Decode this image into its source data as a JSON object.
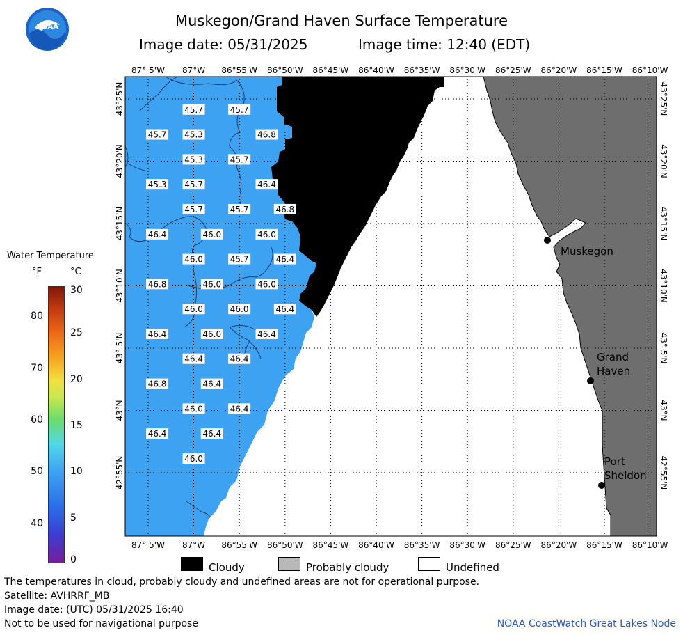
{
  "title": "Muskegon/Grand Haven Surface Temperature",
  "image_date": "Image date: 05/31/2025",
  "image_time": "Image time: 12:40 (EDT)",
  "lon_labels": [
    "87° 5'W",
    "87°W",
    "86°55'W",
    "86°50'W",
    "86°45'W",
    "86°40'W",
    "86°35'W",
    "86°30'W",
    "86°25'W",
    "86°20'W",
    "86°15'W",
    "86°10'W"
  ],
  "lat_labels": [
    "43°25'N",
    "43°20'N",
    "43°15'N",
    "43°10'N",
    "43° 5'N",
    "43°N",
    "42°55'N"
  ],
  "legend": {
    "title": "Water Temperature",
    "unit_f": "°F",
    "unit_c": "°C",
    "f_ticks": [
      "80",
      "70",
      "60",
      "50",
      "40"
    ],
    "c_ticks": [
      "30",
      "25",
      "20",
      "15",
      "10",
      "5",
      "0"
    ]
  },
  "cities": [
    {
      "name": "Muskegon"
    },
    {
      "name": "Grand\nHaven"
    },
    {
      "name": "Port\nSheldon"
    }
  ],
  "temps": [
    {
      "v": "45.7",
      "lon": -87.0,
      "lat": 43.4
    },
    {
      "v": "45.7",
      "lon": -86.9167,
      "lat": 43.4
    },
    {
      "v": "45.7",
      "lon": -87.0667,
      "lat": 43.3667
    },
    {
      "v": "45.3",
      "lon": -87.0,
      "lat": 43.3667
    },
    {
      "v": "46.8",
      "lon": -86.8667,
      "lat": 43.3667
    },
    {
      "v": "45.3",
      "lon": -87.0,
      "lat": 43.3333
    },
    {
      "v": "45.7",
      "lon": -86.9167,
      "lat": 43.3333
    },
    {
      "v": "45.3",
      "lon": -87.0667,
      "lat": 43.3
    },
    {
      "v": "45.7",
      "lon": -87.0,
      "lat": 43.3
    },
    {
      "v": "46.4",
      "lon": -86.8667,
      "lat": 43.3
    },
    {
      "v": "45.7",
      "lon": -87.0,
      "lat": 43.2667
    },
    {
      "v": "45.7",
      "lon": -86.9167,
      "lat": 43.2667
    },
    {
      "v": "46.8",
      "lon": -86.8333,
      "lat": 43.2667
    },
    {
      "v": "46.4",
      "lon": -87.0667,
      "lat": 43.2333
    },
    {
      "v": "46.0",
      "lon": -86.9667,
      "lat": 43.2333
    },
    {
      "v": "46.0",
      "lon": -86.8667,
      "lat": 43.2333
    },
    {
      "v": "46.0",
      "lon": -87.0,
      "lat": 43.2
    },
    {
      "v": "45.7",
      "lon": -86.9167,
      "lat": 43.2
    },
    {
      "v": "46.4",
      "lon": -86.8333,
      "lat": 43.2
    },
    {
      "v": "46.8",
      "lon": -87.0667,
      "lat": 43.1667
    },
    {
      "v": "46.0",
      "lon": -86.9667,
      "lat": 43.1667
    },
    {
      "v": "46.0",
      "lon": -86.8667,
      "lat": 43.1667
    },
    {
      "v": "46.0",
      "lon": -87.0,
      "lat": 43.1333
    },
    {
      "v": "46.0",
      "lon": -86.9167,
      "lat": 43.1333
    },
    {
      "v": "46.4",
      "lon": -86.8333,
      "lat": 43.1333
    },
    {
      "v": "46.4",
      "lon": -87.0667,
      "lat": 43.1
    },
    {
      "v": "46.0",
      "lon": -86.9667,
      "lat": 43.1
    },
    {
      "v": "46.4",
      "lon": -86.8667,
      "lat": 43.1
    },
    {
      "v": "46.4",
      "lon": -87.0,
      "lat": 43.0667
    },
    {
      "v": "46.4",
      "lon": -86.9167,
      "lat": 43.0667
    },
    {
      "v": "46.8",
      "lon": -87.0667,
      "lat": 43.0333
    },
    {
      "v": "46.4",
      "lon": -86.9667,
      "lat": 43.0333
    },
    {
      "v": "46.0",
      "lon": -87.0,
      "lat": 43.0
    },
    {
      "v": "46.4",
      "lon": -86.9167,
      "lat": 43.0
    },
    {
      "v": "46.4",
      "lon": -87.0667,
      "lat": 42.9667
    },
    {
      "v": "46.4",
      "lon": -86.9667,
      "lat": 42.9667
    },
    {
      "v": "46.0",
      "lon": -87.0,
      "lat": 42.9333
    }
  ],
  "key": {
    "cloudy": "Cloudy",
    "probably_cloudy": "Probably cloudy",
    "undefined": "Undefined"
  },
  "footer": {
    "line1": "The temperatures in cloud, probably cloudy and undefined areas are not for operational purpose.",
    "line2": "Satellite: AVHRRF_MB",
    "line3": "Image date: (UTC) 05/31/2025  16:40",
    "line4": "Not to be used for navigational purpose"
  },
  "credit": "NOAA CoastWatch Great Lakes Node",
  "logo_text": "NOAA",
  "colors": {
    "water": "#3ea2f2",
    "land": "#6e6e6e",
    "cloud": "#000000",
    "undefined": "#ffffff"
  }
}
